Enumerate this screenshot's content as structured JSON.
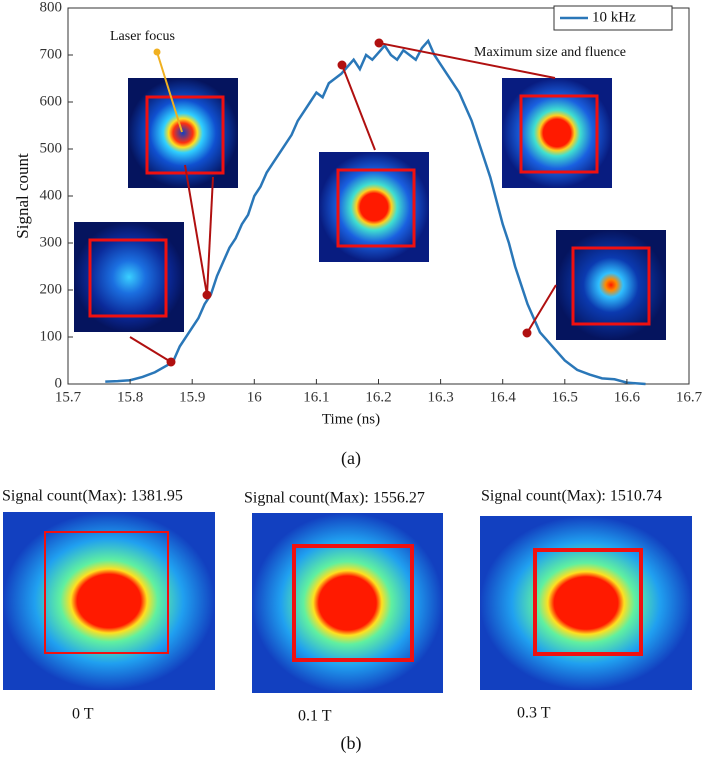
{
  "chart_data": {
    "type": "line",
    "xlabel": "Time (ns)",
    "ylabel": "Signal count",
    "x": [
      15.76,
      15.78,
      15.8,
      15.82,
      15.84,
      15.86,
      15.87,
      15.88,
      15.9,
      15.91,
      15.92,
      15.93,
      15.94,
      15.95,
      15.96,
      15.97,
      15.98,
      15.99,
      16.0,
      16.01,
      16.02,
      16.03,
      16.04,
      16.05,
      16.06,
      16.07,
      16.08,
      16.09,
      16.1,
      16.11,
      16.12,
      16.13,
      16.14,
      16.15,
      16.16,
      16.17,
      16.18,
      16.19,
      16.2,
      16.21,
      16.22,
      16.23,
      16.24,
      16.25,
      16.26,
      16.27,
      16.28,
      16.29,
      16.3,
      16.31,
      16.32,
      16.33,
      16.34,
      16.35,
      16.36,
      16.37,
      16.38,
      16.39,
      16.4,
      16.41,
      16.42,
      16.43,
      16.44,
      16.45,
      16.46,
      16.47,
      16.48,
      16.5,
      16.52,
      16.54,
      16.56,
      16.58,
      16.6,
      16.61,
      16.63
    ],
    "series": [
      {
        "name": "10 kHz",
        "color": "#2a77b8",
        "values": [
          5,
          6,
          8,
          15,
          25,
          40,
          50,
          80,
          120,
          140,
          170,
          190,
          230,
          260,
          290,
          310,
          340,
          360,
          400,
          420,
          450,
          470,
          490,
          510,
          530,
          560,
          580,
          600,
          620,
          610,
          640,
          650,
          660,
          675,
          690,
          670,
          700,
          690,
          705,
          720,
          700,
          690,
          710,
          700,
          690,
          715,
          730,
          700,
          680,
          660,
          640,
          620,
          590,
          560,
          520,
          480,
          440,
          390,
          340,
          300,
          250,
          210,
          170,
          140,
          110,
          95,
          80,
          50,
          30,
          20,
          12,
          10,
          3,
          2,
          0
        ]
      }
    ],
    "xlim": [
      15.7,
      16.7
    ],
    "xticks": [
      15.7,
      15.8,
      15.9,
      16,
      16.1,
      16.2,
      16.3,
      16.4,
      16.5,
      16.6,
      16.7
    ],
    "ylim": [
      0,
      800
    ],
    "yticks": [
      0,
      100,
      200,
      300,
      400,
      500,
      600,
      700,
      800
    ],
    "annotations": [
      "Laser focus",
      "Maximum size and fluence"
    ],
    "panel_a": "(a)",
    "panel_b": "(b)",
    "images": [
      {
        "title": "Signal count(Max): 1381.95",
        "label": "0 T"
      },
      {
        "title": "Signal count(Max): 1556.27",
        "label": "0.1 T"
      },
      {
        "title": "Signal count(Max): 1510.74",
        "label": "0.3 T"
      }
    ]
  }
}
